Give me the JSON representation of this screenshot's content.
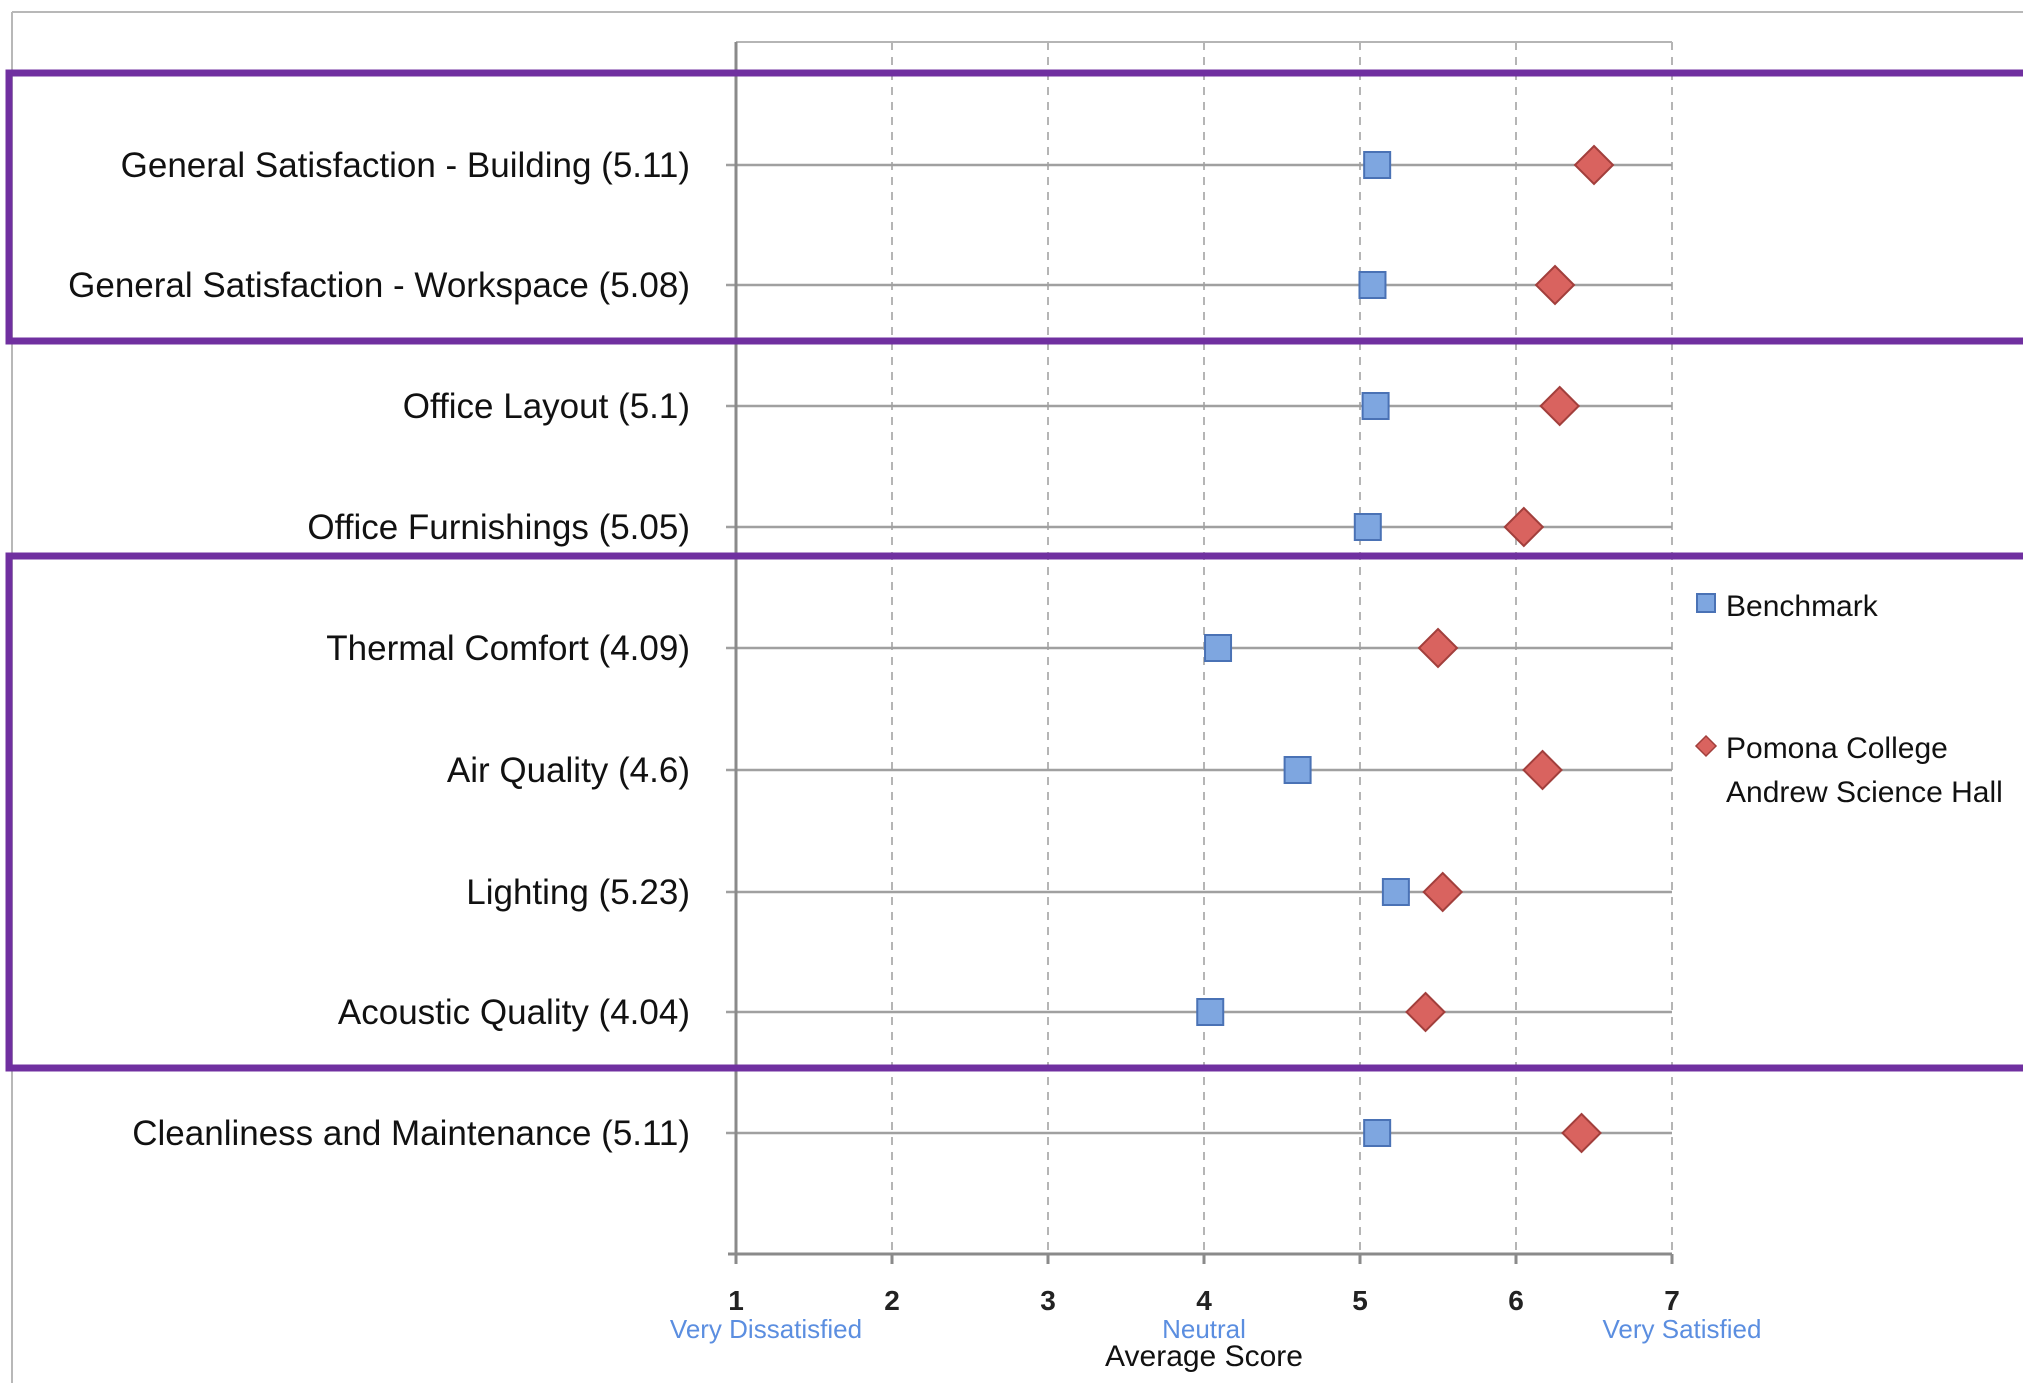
{
  "chart_data": {
    "type": "scatter",
    "orientation": "horizontal",
    "xlabel": "Average Score",
    "xlim": [
      1,
      7
    ],
    "x_ticks": [
      1,
      2,
      3,
      4,
      5,
      6,
      7
    ],
    "x_tick_annotations": [
      {
        "x": 1,
        "label": "Very Dissatisfied"
      },
      {
        "x": 4,
        "label": "Neutral"
      },
      {
        "x": 7,
        "label": "Very Satisfied"
      }
    ],
    "vertical_grid": "dashed",
    "legend_position": "right",
    "categories": [
      "General Satisfaction - Building (5.11)",
      "General Satisfaction - Workspace (5.08)",
      "Office Layout (5.1)",
      "Office Furnishings (5.05)",
      "Thermal Comfort (4.09)",
      "Air Quality (4.6)",
      "Lighting (5.23)",
      "Acoustic Quality (4.04)",
      "Cleanliness and Maintenance (5.11)"
    ],
    "series": [
      {
        "name": "Benchmark",
        "marker": "square",
        "color": "#7ea6e0",
        "values": [
          5.11,
          5.08,
          5.1,
          5.05,
          4.09,
          4.6,
          5.23,
          4.04,
          5.11
        ]
      },
      {
        "name": "Pomona College Andrew Science Hall",
        "marker": "diamond",
        "color": "#d9635f",
        "values": [
          6.5,
          6.25,
          6.28,
          6.05,
          5.5,
          6.17,
          5.53,
          5.42,
          6.42
        ]
      }
    ],
    "highlight_groups": [
      {
        "categories": [
          0,
          1
        ],
        "color": "#7030a0"
      },
      {
        "categories": [
          4,
          5,
          6,
          7
        ],
        "color": "#7030a0"
      }
    ]
  }
}
